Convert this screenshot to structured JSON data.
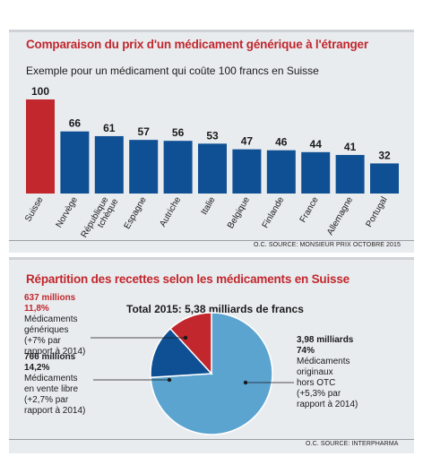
{
  "colors": {
    "accent": "#c1272d",
    "bar": "#0f4f93",
    "pie_large": "#5ba4d0",
    "pie_mid": "#0f4f93",
    "pie_small": "#c1272d"
  },
  "chart_data": [
    {
      "type": "bar",
      "title": "Comparaison du prix d'un médicament générique à l'étranger",
      "subtitle": "Exemple pour un médicament qui coûte 100 francs en Suisse",
      "categories": [
        "Suisse",
        "Norvège",
        "République tchèque",
        "Espagne",
        "Autriche",
        "Italie",
        "Belgique",
        "Finlande",
        "France",
        "Allemagne",
        "Portugal"
      ],
      "values": [
        100,
        66,
        61,
        57,
        56,
        53,
        47,
        46,
        44,
        41,
        32
      ],
      "ylim": [
        0,
        100
      ],
      "highlight": "Suisse",
      "source": "O.C. SOURCE: MONSIEUR PRIX OCTOBRE 2015"
    },
    {
      "type": "pie",
      "title": "Répartition des recettes selon les médicaments en Suisse",
      "subtitle": "Total 2015: 5,38 milliards de francs",
      "slices": [
        {
          "amount": "3,98 milliards",
          "pct_label": "74%",
          "value": 74,
          "lines": [
            "Médicaments",
            "originaux",
            "hors OTC",
            "(+5,3% par",
            "rapport à 2014)"
          ]
        },
        {
          "amount": "766 millions",
          "pct_label": "14,2%",
          "value": 14.2,
          "lines": [
            "Médicaments",
            "en vente libre",
            "(+2,7% par",
            "rapport à 2014)"
          ]
        },
        {
          "amount": "637 millions",
          "pct_label": "11,8%",
          "value": 11.8,
          "lines": [
            "Médicaments",
            "génériques",
            "(+7% par",
            "rapport à 2014)"
          ]
        }
      ],
      "source": "O.C. SOURCE: INTERPHARMA"
    }
  ]
}
